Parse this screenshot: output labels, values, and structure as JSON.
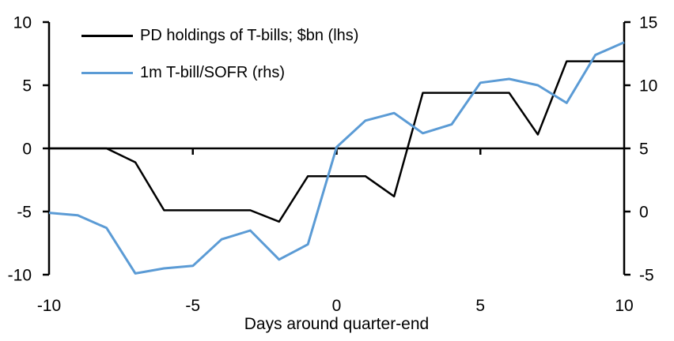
{
  "chart_data": {
    "type": "line",
    "title": "",
    "xlabel": "Days around quarter-end",
    "x": [
      -10,
      -9,
      -8,
      -7,
      -6,
      -5,
      -4,
      -3,
      -2,
      -1,
      0,
      1,
      2,
      3,
      4,
      5,
      6,
      7,
      8,
      9,
      10
    ],
    "series": [
      {
        "name": "PD holdings of T-bills; $bn (lhs)",
        "axis": "left",
        "color": "#000000",
        "stroke_width": 2.5,
        "values": [
          0,
          0,
          0,
          -1.1,
          -4.9,
          -4.9,
          -4.9,
          -4.9,
          -5.8,
          -2.2,
          -2.2,
          -2.2,
          -3.8,
          4.4,
          4.4,
          4.4,
          4.4,
          1.1,
          6.9,
          6.9,
          6.9
        ]
      },
      {
        "name": "1m T-bill/SOFR (rhs)",
        "axis": "right",
        "color": "#5B9BD5",
        "stroke_width": 3,
        "values": [
          -0.1,
          -0.3,
          -1.3,
          -4.9,
          -4.5,
          -4.3,
          -2.2,
          -1.5,
          -3.8,
          -2.6,
          5.1,
          7.2,
          7.8,
          6.2,
          6.9,
          10.2,
          10.5,
          10.0,
          8.6,
          12.4,
          13.4
        ]
      }
    ],
    "left_axis": {
      "min": -10,
      "max": 10,
      "ticks": [
        10,
        5,
        0,
        -5,
        -10
      ]
    },
    "right_axis": {
      "min": -5,
      "max": 15,
      "ticks": [
        15,
        10,
        5,
        0,
        -5
      ]
    },
    "x_axis": {
      "min": -10,
      "max": 10,
      "ticks": [
        -10,
        -5,
        0,
        5,
        10
      ]
    },
    "grid": false,
    "legend_position": "top-left",
    "axis_color": "#000000"
  }
}
